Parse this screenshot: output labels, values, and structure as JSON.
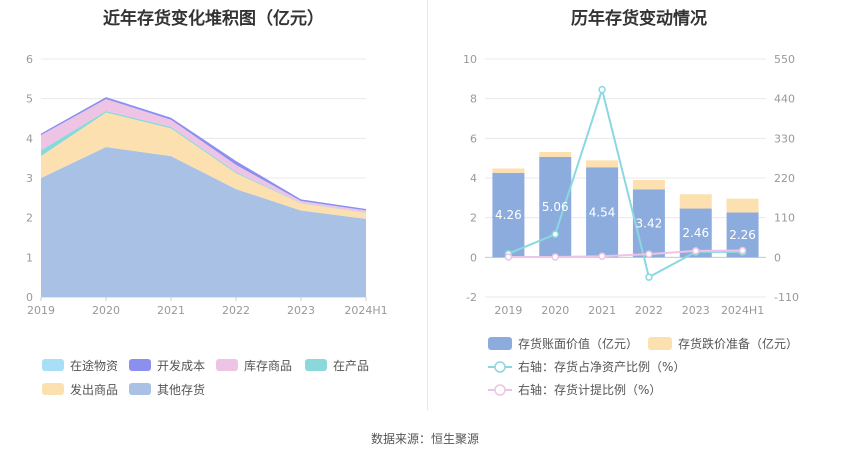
{
  "left_title": "近年存货变化堆积图（亿元）",
  "right_title": "历年存货变动情况",
  "source": "数据来源：恒生聚源",
  "chart_data": [
    {
      "type": "area",
      "stacked": true,
      "title": "近年存货变化堆积图（亿元）",
      "categories": [
        "2019",
        "2020",
        "2021",
        "2022",
        "2023",
        "2024H1"
      ],
      "ylim": [
        0,
        6
      ],
      "yticks": [
        0,
        1,
        2,
        3,
        4,
        5,
        6
      ],
      "grid": true,
      "legend_position": "bottom",
      "series": [
        {
          "name": "其他存货",
          "color": "#a9c1e4",
          "values": [
            3.0,
            3.78,
            3.55,
            2.72,
            2.18,
            1.97
          ]
        },
        {
          "name": "发出商品",
          "color": "#fde0b0",
          "values": [
            0.55,
            0.87,
            0.7,
            0.4,
            0.18,
            0.15
          ]
        },
        {
          "name": "在产品",
          "color": "#8ad8da",
          "values": [
            0.15,
            0.04,
            0.04,
            0.03,
            0.01,
            0.01
          ]
        },
        {
          "name": "库存商品",
          "color": "#eec4e4",
          "values": [
            0.38,
            0.3,
            0.18,
            0.18,
            0.05,
            0.05
          ]
        },
        {
          "name": "开发成本",
          "color": "#8b90ef",
          "values": [
            0.04,
            0.05,
            0.05,
            0.1,
            0.04,
            0.04
          ]
        },
        {
          "name": "在途物资",
          "color": "#a8def6",
          "values": [
            0.0,
            0.0,
            0.0,
            0.0,
            0.0,
            0.0
          ]
        }
      ],
      "legend_order": [
        "在途物资",
        "开发成本",
        "库存商品",
        "在产品",
        "发出商品",
        "其他存货"
      ]
    },
    {
      "type": "bar",
      "stacked": true,
      "title": "历年存货变动情况",
      "categories": [
        "2019",
        "2020",
        "2021",
        "2022",
        "2023",
        "2024H1"
      ],
      "ylim": [
        -2,
        10
      ],
      "yticks": [
        -2,
        0,
        2,
        4,
        6,
        8,
        10
      ],
      "y2lim": [
        -110,
        550
      ],
      "y2ticks": [
        -110,
        0,
        110,
        220,
        330,
        440,
        550
      ],
      "grid": true,
      "legend_position": "bottom",
      "series": [
        {
          "name": "存货账面价值（亿元）",
          "color": "#8cacde",
          "values": [
            4.26,
            5.06,
            4.54,
            3.42,
            2.46,
            2.26
          ],
          "labels": [
            "4.26",
            "5.06",
            "4.54",
            "3.42",
            "2.46",
            "2.26"
          ]
        },
        {
          "name": "存货跌价准备（亿元）",
          "color": "#fde0b0",
          "values": [
            0.22,
            0.25,
            0.35,
            0.48,
            0.72,
            0.7
          ]
        }
      ],
      "lines": [
        {
          "name": "右轴：存货占净资产比例（%）",
          "color": "#8ad8e0",
          "axis": "right",
          "values": [
            10,
            64,
            465,
            -55,
            15,
            15
          ]
        },
        {
          "name": "右轴：存货计提比例（%）",
          "color": "#eec4e4",
          "axis": "right",
          "values": [
            1,
            1,
            3,
            9,
            18,
            19
          ]
        }
      ]
    }
  ]
}
